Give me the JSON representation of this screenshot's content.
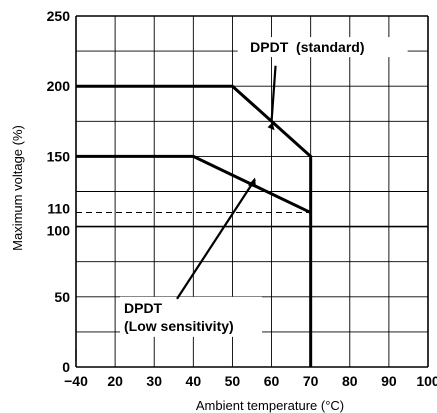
{
  "chart_data": {
    "type": "line",
    "xlabel": "Ambient temperature (°C)",
    "ylabel": "Maximum voltage (%)",
    "xlim": [
      -40,
      100
    ],
    "ylim": [
      0,
      250
    ],
    "x_ticks": [
      -40,
      20,
      30,
      40,
      50,
      60,
      70,
      80,
      90,
      100
    ],
    "x_tick_labels": [
      "−40",
      "20",
      "30",
      "40",
      "50",
      "60",
      "70",
      "80",
      "90",
      "100"
    ],
    "y_ticks": [
      0,
      50,
      100,
      110,
      150,
      200,
      250
    ],
    "y_tick_labels": [
      "0",
      "50",
      "100",
      "110",
      "150",
      "200",
      "250"
    ],
    "grid": true,
    "series": [
      {
        "name": "DPDT (standard)",
        "x": [
          -40,
          50,
          70,
          70
        ],
        "y": [
          200,
          200,
          150,
          0
        ]
      },
      {
        "name": "DPDT (Low sensitivity)",
        "x": [
          -40,
          40,
          70
        ],
        "y": [
          150,
          150,
          110
        ]
      }
    ],
    "reference_lines": [
      {
        "y": 110,
        "style": "dashed"
      }
    ],
    "annotations": [
      {
        "text": "DPDT  (standard)",
        "points_to": [
          60,
          175
        ]
      },
      {
        "text": "DPDT",
        "text2": "(Low sensitivity)",
        "points_to": [
          55,
          135
        ]
      }
    ]
  }
}
